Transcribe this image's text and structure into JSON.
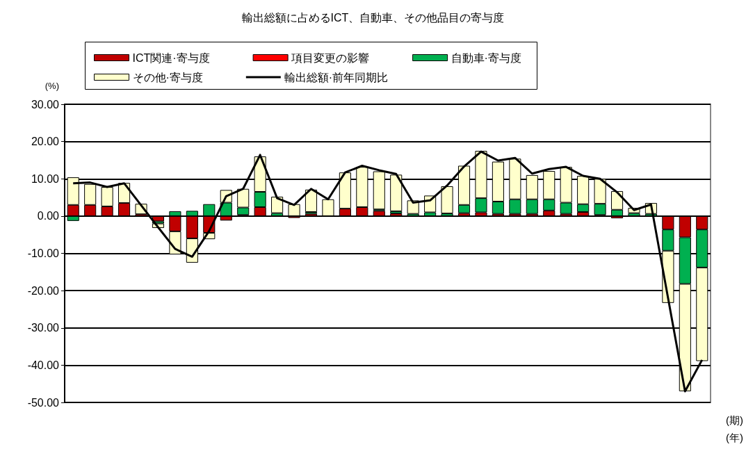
{
  "chart_data": {
    "type": "bar",
    "title": "輸出総額に占めるICT、自動車、その他品目の寄与度",
    "ylabel": "(%)",
    "xlabel": "(期)",
    "annotations": [
      "(年)"
    ],
    "categories": [
      null,
      null,
      null,
      null,
      null,
      null,
      null,
      null,
      null,
      null,
      null,
      null,
      null,
      null,
      null,
      null,
      null,
      null,
      null,
      null,
      null,
      null,
      null,
      null,
      null,
      null,
      null,
      null,
      null,
      null,
      null,
      null,
      null,
      null,
      null,
      null,
      null,
      null
    ],
    "stacked": true,
    "grid": "y",
    "legend": "top",
    "marker": "none",
    "ylim": [
      -50,
      30
    ],
    "yticks": [
      {
        "value": -50,
        "label": "-50.00"
      },
      {
        "value": -40,
        "label": "-40.00"
      },
      {
        "value": -30,
        "label": "-30.00"
      },
      {
        "value": -20,
        "label": "-20.00"
      },
      {
        "value": -10,
        "label": "-10.00"
      },
      {
        "value": 0,
        "label": "0.00"
      },
      {
        "value": 10,
        "label": "10.00"
      },
      {
        "value": 20,
        "label": "20.00"
      },
      {
        "value": 30,
        "label": "30.00"
      }
    ],
    "series": [
      {
        "name": "ICT関連·寄与度",
        "color": "#c00000",
        "values": [
          3.0,
          3.0,
          2.6,
          3.5,
          0.5,
          -1.4,
          -4.1,
          -6.0,
          -4.5,
          -1.2,
          0.3,
          2.4,
          null,
          -0.5,
          0.6,
          0,
          2.0,
          2.4,
          1.4,
          0.7,
          0,
          0,
          0,
          0.8,
          1.0,
          0.6,
          0.6,
          0.6,
          1.5,
          0.6,
          1.1,
          0.3,
          -0.6,
          0,
          0,
          -3.6,
          -5.7,
          -3.6
        ]
      },
      {
        "name": "項目変更の影響",
        "color": "#ff0000",
        "values": [
          0,
          0,
          0,
          0,
          0,
          0,
          0,
          0,
          0,
          0,
          0,
          0,
          0,
          0,
          0,
          0,
          0,
          0,
          0,
          0,
          0,
          0,
          0,
          0,
          0,
          0,
          0,
          0,
          0,
          0,
          0,
          0,
          0,
          0,
          0,
          0,
          0,
          0
        ]
      },
      {
        "name": "自動車·寄与度",
        "color": "#00b050",
        "values": [
          -1.3,
          0,
          0,
          0,
          0,
          -0.6,
          1.3,
          1.4,
          3.2,
          3.6,
          2.0,
          4.1,
          0.8,
          0,
          0.5,
          0,
          0,
          0,
          0.4,
          0.6,
          0.6,
          1.0,
          0.7,
          2.2,
          3.8,
          3.3,
          3.9,
          3.9,
          3.0,
          3.0,
          2.1,
          3.0,
          1.7,
          0.8,
          0.6,
          -5.7,
          -12.5,
          -10.2
        ]
      },
      {
        "name": "その他·寄与度",
        "color": "#ffffcc",
        "values": [
          7.4,
          5.6,
          5.2,
          5.4,
          2.8,
          -1.2,
          -6.2,
          -6.5,
          -1.7,
          3.4,
          5.0,
          9.5,
          4.4,
          3.2,
          6.0,
          4.5,
          9.7,
          10.8,
          10.2,
          9.8,
          3.6,
          4.5,
          7.3,
          10.5,
          12.7,
          10.7,
          10.9,
          6.5,
          7.6,
          9.6,
          7.6,
          6.7,
          5.0,
          1.4,
          2.9,
          -14.0,
          -28.8,
          -25.1
        ]
      },
      {
        "name": "輸出総額·前年同期比",
        "type": "line",
        "color": "#000000",
        "values": [
          8.8,
          9.0,
          7.8,
          8.8,
          2.9,
          -3.0,
          -8.8,
          -10.9,
          -4.0,
          5.3,
          7.3,
          16.4,
          4.8,
          3.0,
          7.3,
          4.5,
          11.7,
          13.5,
          12.3,
          11.3,
          3.6,
          4.2,
          8.2,
          13.3,
          17.3,
          14.9,
          15.6,
          11.4,
          12.6,
          13.2,
          10.8,
          10.0,
          6.4,
          1.6,
          3.1,
          -22.0,
          -47.0,
          -38.6
        ]
      }
    ]
  }
}
